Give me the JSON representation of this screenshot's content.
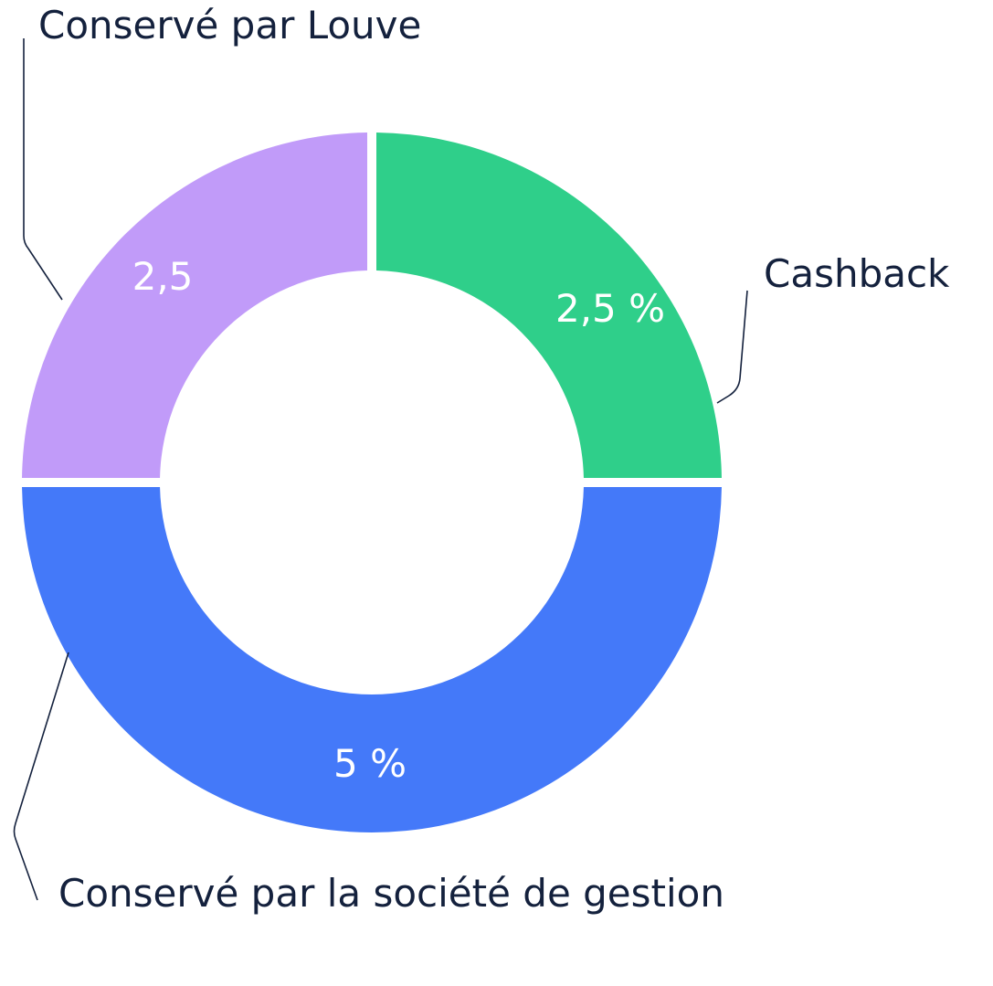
{
  "chart_data": {
    "type": "pie",
    "variant": "donut",
    "categories": [
      "Cashback",
      "Conservé par la société de gestion",
      "Conservé par Louve"
    ],
    "values": [
      2.5,
      5,
      2.5
    ],
    "slice_labels": [
      "2,5 %",
      "5 %",
      "2,5"
    ],
    "colors": [
      "#2fcf8a",
      "#4479f9",
      "#c19bf9"
    ],
    "title": "",
    "legend": "none",
    "label_color": "#ffffff",
    "text_color": "#14213d"
  }
}
